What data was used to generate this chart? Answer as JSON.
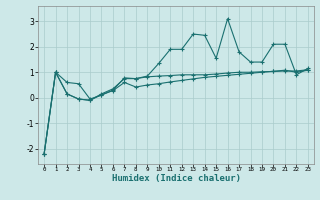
{
  "xlabel": "Humidex (Indice chaleur)",
  "background_color": "#cde8e8",
  "grid_color": "#aacccc",
  "line_color": "#1a7070",
  "xlim": [
    -0.5,
    23.5
  ],
  "ylim": [
    -2.6,
    3.6
  ],
  "xticks": [
    0,
    1,
    2,
    3,
    4,
    5,
    6,
    7,
    8,
    9,
    10,
    11,
    12,
    13,
    14,
    15,
    16,
    17,
    18,
    19,
    20,
    21,
    22,
    23
  ],
  "yticks": [
    -2,
    -1,
    0,
    1,
    2,
    3
  ],
  "line1_x": [
    0,
    1,
    2,
    3,
    4,
    5,
    6,
    7,
    8,
    9,
    10,
    11,
    12,
    13,
    14,
    15,
    16,
    17,
    18,
    19,
    20,
    21,
    22,
    23
  ],
  "line1_y": [
    -2.2,
    1.0,
    0.6,
    0.55,
    -0.05,
    0.1,
    0.3,
    0.78,
    0.75,
    0.82,
    0.85,
    0.87,
    0.9,
    0.9,
    0.9,
    0.93,
    0.97,
    1.0,
    1.0,
    1.02,
    1.03,
    1.05,
    1.05,
    1.1
  ],
  "line2_x": [
    0,
    1,
    2,
    3,
    4,
    5,
    6,
    7,
    8,
    9,
    10,
    11,
    12,
    13,
    14,
    15,
    16,
    17,
    18,
    19,
    20,
    21,
    22,
    23
  ],
  "line2_y": [
    -2.2,
    1.0,
    0.15,
    -0.05,
    -0.1,
    0.15,
    0.35,
    0.75,
    0.75,
    0.85,
    1.35,
    1.9,
    1.9,
    2.5,
    2.45,
    1.55,
    3.1,
    1.8,
    1.4,
    1.4,
    2.1,
    2.1,
    0.9,
    1.15
  ],
  "line3_x": [
    0,
    1,
    2,
    3,
    4,
    5,
    6,
    7,
    8,
    9,
    10,
    11,
    12,
    13,
    14,
    15,
    16,
    17,
    18,
    19,
    20,
    21,
    22,
    23
  ],
  "line3_y": [
    -2.2,
    1.0,
    0.15,
    -0.05,
    -0.1,
    0.12,
    0.28,
    0.6,
    0.42,
    0.5,
    0.55,
    0.62,
    0.68,
    0.74,
    0.8,
    0.84,
    0.88,
    0.92,
    0.96,
    1.0,
    1.04,
    1.08,
    1.0,
    1.08
  ]
}
